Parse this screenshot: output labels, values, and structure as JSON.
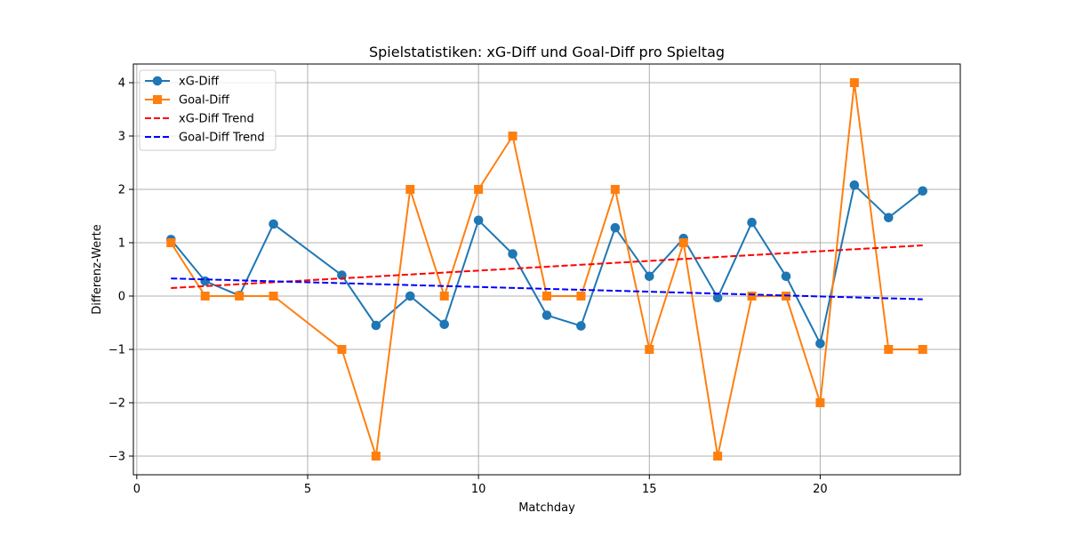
{
  "chart_data": {
    "type": "line",
    "title": "Spielstatistiken: xG-Diff und Goal-Diff pro Spieltag",
    "xlabel": "Matchday",
    "ylabel": "Differenz-Werte",
    "xlim": [
      -0.1,
      24.1
    ],
    "ylim": [
      -3.35,
      4.35
    ],
    "xticks": [
      0,
      5,
      10,
      15,
      20
    ],
    "yticks": [
      -3,
      -2,
      -1,
      0,
      1,
      2,
      3,
      4
    ],
    "grid": true,
    "legend_position": "top-left",
    "series": [
      {
        "name": "xG-Diff",
        "color": "#1f77b4",
        "marker": "circle",
        "style": "solid",
        "x": [
          1,
          2,
          3,
          4,
          6,
          7,
          8,
          9,
          10,
          11,
          12,
          13,
          14,
          15,
          16,
          17,
          18,
          19,
          20,
          21,
          22,
          23
        ],
        "y": [
          1.06,
          0.28,
          0.01,
          1.35,
          0.39,
          -0.55,
          0.0,
          -0.53,
          1.42,
          0.79,
          -0.36,
          -0.56,
          1.28,
          0.37,
          1.08,
          -0.03,
          1.38,
          0.37,
          -0.89,
          2.08,
          1.47,
          1.97
        ]
      },
      {
        "name": "Goal-Diff",
        "color": "#ff7f0e",
        "marker": "square",
        "style": "solid",
        "x": [
          1,
          2,
          3,
          4,
          6,
          7,
          8,
          9,
          10,
          11,
          12,
          13,
          14,
          15,
          16,
          17,
          18,
          19,
          20,
          21,
          22,
          23
        ],
        "y": [
          1,
          0,
          0,
          0,
          -1,
          -3,
          2,
          0,
          2,
          3,
          0,
          0,
          2,
          -1,
          1,
          -3,
          0,
          0,
          -2,
          4,
          -1,
          -1
        ]
      },
      {
        "name": "xG-Diff Trend",
        "color": "#ff0000",
        "marker": "none",
        "style": "dashed",
        "x": [
          1,
          23
        ],
        "y": [
          0.15,
          0.95
        ]
      },
      {
        "name": "Goal-Diff Trend",
        "color": "#0000ff",
        "marker": "none",
        "style": "dashed",
        "x": [
          1,
          23
        ],
        "y": [
          0.33,
          -0.06
        ]
      }
    ]
  }
}
